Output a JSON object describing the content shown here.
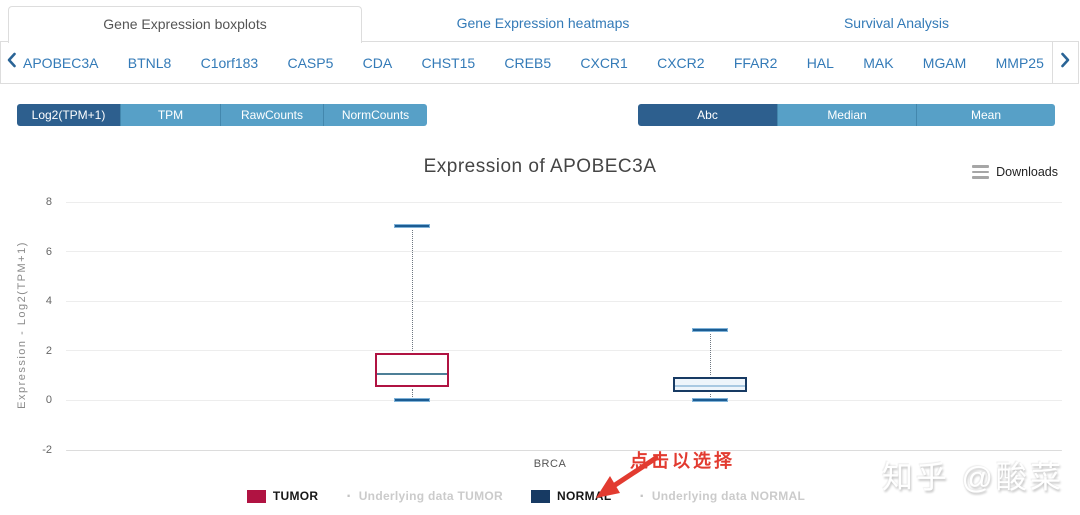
{
  "tabs": [
    {
      "label": "Gene Expression boxplots",
      "active": true
    },
    {
      "label": "Gene Expression heatmaps",
      "active": false
    },
    {
      "label": "Survival Analysis",
      "active": false
    }
  ],
  "gene_nav": {
    "left_arrow_icon": "chevron-left",
    "right_arrow_icon": "chevron-right",
    "genes": [
      "APOBEC3A",
      "BTNL8",
      "C1orf183",
      "CASP5",
      "CDA",
      "CHST15",
      "CREB5",
      "CXCR1",
      "CXCR2",
      "FFAR2",
      "HAL",
      "MAK",
      "MGAM",
      "MMP25"
    ]
  },
  "scale_buttons": [
    {
      "label": "Log2(TPM+1)",
      "active": true
    },
    {
      "label": "TPM",
      "active": false
    },
    {
      "label": "RawCounts",
      "active": false
    },
    {
      "label": "NormCounts",
      "active": false
    }
  ],
  "stat_buttons": [
    {
      "label": "Abc",
      "active": true
    },
    {
      "label": "Median",
      "active": false
    },
    {
      "label": "Mean",
      "active": false
    }
  ],
  "chart": {
    "title": "Expression of APOBEC3A",
    "downloads_label": "Downloads",
    "menu_icon": "hamburger-icon",
    "ylabel": "Expression - Log2(TPM+1)",
    "xlabel": "BRCA"
  },
  "chart_data": {
    "type": "boxplot",
    "title": "Expression of APOBEC3A",
    "categories": [
      "BRCA"
    ],
    "ylabel": "Expression - Log2(TPM+1)",
    "ylim": [
      -2,
      8
    ],
    "yticks": [
      8,
      6,
      4,
      2,
      0,
      -2
    ],
    "grid": true,
    "whisker_cap_color": "#1c5c92",
    "series": [
      {
        "name": "TUMOR",
        "box_color": "#b01342",
        "fill_color": "#ffffff",
        "median_color": "#4e7f97",
        "low": 0,
        "q1": 0.55,
        "median": 1.05,
        "q3": 1.9,
        "high": 7.0
      },
      {
        "name": "NORMAL",
        "box_color": "#173a63",
        "fill_color": "#eef5fb",
        "median_color": "#a9c9e2",
        "low": 0.02,
        "q1": 0.35,
        "median": 0.6,
        "q3": 0.95,
        "high": 2.8
      }
    ]
  },
  "legend": {
    "items": [
      {
        "label": "TUMOR",
        "kind": "box",
        "swatch_color": "#b01342"
      },
      {
        "label": "Underlying data TUMOR",
        "kind": "dot",
        "swatch_color": "#c4c4c4"
      },
      {
        "label": "NORMAL",
        "kind": "box",
        "swatch_color": "#173a63"
      },
      {
        "label": "Underlying data NORMAL",
        "kind": "dot",
        "swatch_color": "#c4c4c4"
      }
    ]
  },
  "annotation": {
    "text": "点击以选择",
    "color": "#e23b30",
    "arrow_icon": "red-arrow-down-left"
  },
  "watermark": {
    "text": "知乎 @酸菜"
  },
  "colors": {
    "link_blue": "#337ab7",
    "tab_active_text": "#555555",
    "button_dark": "#2d5f8e",
    "button_light": "#57a0c7"
  }
}
